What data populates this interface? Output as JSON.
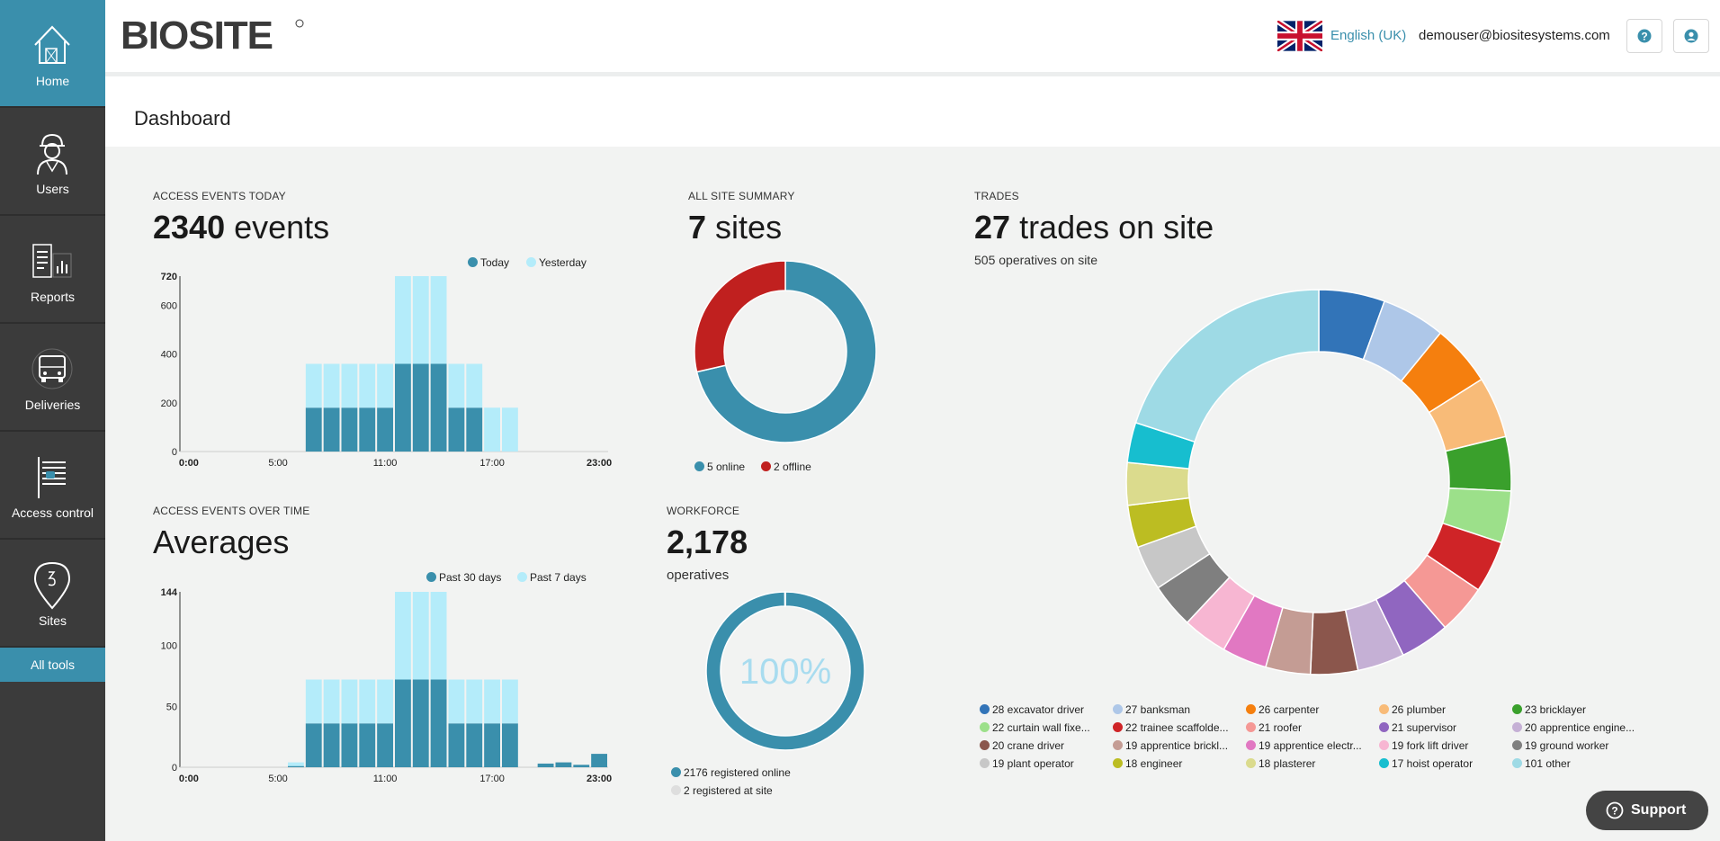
{
  "sidebar": {
    "items": [
      {
        "label": "Home",
        "icon": "house-icon",
        "active": true
      },
      {
        "label": "Users",
        "icon": "worker-icon"
      },
      {
        "label": "Reports",
        "icon": "reports-icon"
      },
      {
        "label": "Deliveries",
        "icon": "truck-icon"
      },
      {
        "label": "Access control",
        "icon": "access-control-icon"
      },
      {
        "label": "Sites",
        "icon": "map-pin-icon"
      }
    ],
    "all_tools_label": "All tools"
  },
  "header": {
    "logo_text": "BIOSITE",
    "language": "English (UK)",
    "user_email": "demouser@biositesystems.com",
    "help_icon": "help-icon",
    "account_icon": "user-circle-icon"
  },
  "page": {
    "title": "Dashboard"
  },
  "access_today": {
    "label": "ACCESS EVENTS TODAY",
    "count": "2340",
    "unit": "events"
  },
  "access_over_time": {
    "label": "ACCESS EVENTS OVER TIME",
    "headline": "Averages"
  },
  "site_summary": {
    "label": "ALL SITE SUMMARY",
    "count": "7",
    "unit": "sites"
  },
  "workforce": {
    "label": "WORKFORCE",
    "count": "2,178",
    "unit": "operatives"
  },
  "trades": {
    "label": "TRADES",
    "count": "27",
    "unit": "trades on site",
    "subline": "505 operatives on site"
  },
  "support": {
    "label": "Support"
  },
  "colors": {
    "accent": "#3a8fac",
    "light": "#b4ecfa",
    "offline": "#c0201f",
    "sidebar": "#3b3b3b"
  },
  "chart_data": [
    {
      "type": "bar",
      "id": "access-events-today",
      "stacked": true,
      "ylim": [
        0,
        720
      ],
      "yticks": [
        "0",
        "200",
        "400",
        "600",
        "720"
      ],
      "xticks": [
        "0:00",
        "5:00",
        "11:00",
        "17:00",
        "23:00"
      ],
      "categories": [
        "0",
        "1",
        "2",
        "3",
        "4",
        "5",
        "6",
        "7",
        "8",
        "9",
        "10",
        "11",
        "12",
        "13",
        "14",
        "15",
        "16",
        "17",
        "18",
        "19",
        "20",
        "21",
        "22",
        "23"
      ],
      "legend_position": "top-right",
      "series": [
        {
          "name": "Today",
          "color": "#3a8fac",
          "values": [
            0,
            0,
            0,
            0,
            0,
            0,
            0,
            180,
            180,
            180,
            180,
            180,
            360,
            360,
            360,
            180,
            180,
            0,
            0,
            0,
            0,
            0,
            0,
            0
          ]
        },
        {
          "name": "Yesterday",
          "color": "#b4ecfa",
          "values": [
            0,
            0,
            0,
            0,
            0,
            0,
            0,
            180,
            180,
            180,
            180,
            180,
            360,
            360,
            360,
            180,
            180,
            180,
            180,
            0,
            0,
            0,
            0,
            0
          ]
        }
      ]
    },
    {
      "type": "bar",
      "id": "access-events-over-time",
      "stacked": true,
      "ylim": [
        0,
        144
      ],
      "yticks": [
        "0",
        "50",
        "100",
        "144"
      ],
      "xticks": [
        "0:00",
        "5:00",
        "11:00",
        "17:00",
        "23:00"
      ],
      "categories": [
        "0",
        "1",
        "2",
        "3",
        "4",
        "5",
        "6",
        "7",
        "8",
        "9",
        "10",
        "11",
        "12",
        "13",
        "14",
        "15",
        "16",
        "17",
        "18",
        "19",
        "20",
        "21",
        "22",
        "23"
      ],
      "legend_position": "top-right",
      "series": [
        {
          "name": "Past 30 days",
          "color": "#3a8fac",
          "values": [
            0,
            0,
            0,
            0,
            0,
            0,
            1,
            36,
            36,
            36,
            36,
            36,
            72,
            72,
            72,
            36,
            36,
            36,
            36,
            0,
            3,
            4,
            2,
            11
          ]
        },
        {
          "name": "Past 7 days",
          "color": "#b4ecfa",
          "values": [
            0,
            0,
            0,
            0,
            0,
            0,
            3,
            36,
            36,
            36,
            36,
            36,
            72,
            72,
            72,
            36,
            36,
            36,
            36,
            0,
            0,
            0,
            0,
            0
          ]
        }
      ]
    },
    {
      "type": "pie",
      "id": "all-site-summary",
      "donut": true,
      "categories": [
        "5 online",
        "2 offline"
      ],
      "values": [
        5,
        2
      ],
      "colors": [
        "#3a8fac",
        "#c0201f"
      ],
      "legend_position": "bottom"
    },
    {
      "type": "pie",
      "id": "workforce",
      "donut": true,
      "center_label": "100%",
      "categories": [
        "2176 registered online",
        "2 registered at site"
      ],
      "values": [
        2176,
        2
      ],
      "colors": [
        "#3a8fac",
        "#dedede"
      ],
      "legend_position": "bottom"
    },
    {
      "type": "pie",
      "id": "trades",
      "donut": true,
      "legend_position": "bottom",
      "categories": [
        "28 excavator driver",
        "27 banksman",
        "26 carpenter",
        "26 plumber",
        "23 bricklayer",
        "22 curtain wall fixe...",
        "22 trainee scaffolde...",
        "21 roofer",
        "21 supervisor",
        "20 apprentice engine...",
        "20 crane driver",
        "19 apprentice brickl...",
        "19 apprentice electr...",
        "19 fork lift driver",
        "19 ground worker",
        "19 plant operator",
        "18 engineer",
        "18 plasterer",
        "17 hoist operator",
        "101 other"
      ],
      "values": [
        28,
        27,
        26,
        26,
        23,
        22,
        22,
        21,
        21,
        20,
        20,
        19,
        19,
        19,
        19,
        19,
        18,
        18,
        17,
        101
      ],
      "colors": [
        "#3274b8",
        "#aec7e8",
        "#f57f0e",
        "#f8bb78",
        "#3aa02c",
        "#9ce08a",
        "#cf2427",
        "#f59895",
        "#9066c0",
        "#c5b0d5",
        "#8b564c",
        "#c49c94",
        "#e178c2",
        "#f7b6d2",
        "#7f7f7f",
        "#c7c7c7",
        "#bcbd22",
        "#dbdb8d",
        "#17becf",
        "#9edae5"
      ]
    }
  ]
}
